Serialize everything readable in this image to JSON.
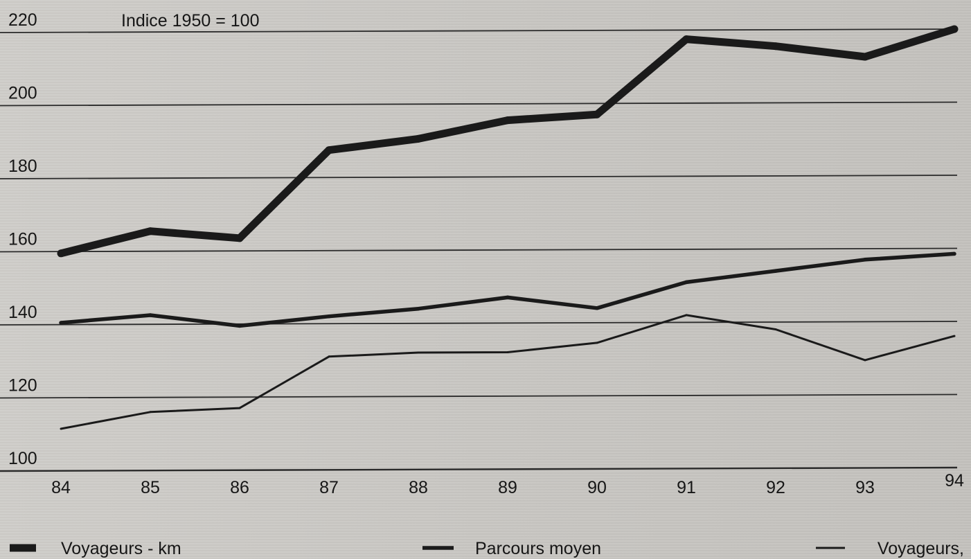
{
  "chart_data": {
    "type": "line",
    "note": "Indice 1950 = 100",
    "categories": [
      "84",
      "85",
      "86",
      "87",
      "88",
      "89",
      "90",
      "91",
      "92",
      "93",
      "94"
    ],
    "y_ticks": [
      "220",
      "200",
      "180",
      "160",
      "140",
      "120",
      "100"
    ],
    "y_tick_values": [
      220,
      200,
      180,
      160,
      140,
      120,
      100
    ],
    "ylim": [
      100,
      220
    ],
    "grid": "horizontal",
    "legend_position": "bottom",
    "series": [
      {
        "name": "Voyageurs - km",
        "style": "thick",
        "color": "#1a1a1a",
        "values": [
          159.5,
          165.5,
          163.5,
          187.5,
          190.5,
          195.5,
          197,
          217.5,
          215.5,
          212.5,
          220
        ]
      },
      {
        "name": "Parcours moyen",
        "style": "medium",
        "color": "#1a1a1a",
        "values": [
          140.5,
          142.5,
          139.5,
          142,
          144,
          147,
          144,
          151,
          154,
          157,
          158.5
        ]
      },
      {
        "name": "Voyageurs,",
        "style": "thin",
        "color": "#1a1a1a",
        "values": [
          111.5,
          116,
          117,
          131,
          132,
          132,
          134.5,
          142,
          138,
          129.5,
          136
        ]
      }
    ]
  }
}
